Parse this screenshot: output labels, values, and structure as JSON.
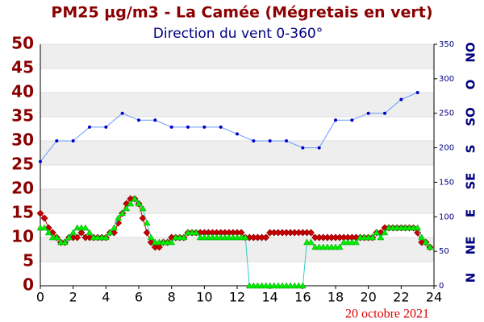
{
  "chart_data": {
    "type": "line",
    "title": "PM25 µg/m3 - La Camée (Mégretais en vert)",
    "subtitle": "Direction du vent 0-360°",
    "date": "20 octobre 2021",
    "xlim": [
      0,
      24
    ],
    "xticks": [
      0,
      2,
      4,
      6,
      8,
      10,
      12,
      14,
      16,
      18,
      20,
      22,
      24
    ],
    "ylim": [
      0,
      50
    ],
    "yticks": [
      0,
      5,
      10,
      15,
      20,
      25,
      30,
      35,
      40,
      45,
      50
    ],
    "y2lim": [
      0,
      350
    ],
    "y2ticks": [
      0,
      50,
      100,
      150,
      200,
      250,
      300,
      350
    ],
    "y2_labels": [
      "N",
      "NE",
      "E",
      "SE",
      "S",
      "SO",
      "O",
      "NO"
    ],
    "grid": true,
    "series": [
      {
        "color": "#cc0000",
        "marker": "diamond",
        "x": [
          0,
          0.25,
          0.5,
          0.75,
          1,
          1.25,
          1.5,
          1.75,
          2,
          2.25,
          2.5,
          2.75,
          3,
          3.25,
          3.5,
          3.75,
          4,
          4.25,
          4.5,
          4.75,
          5,
          5.25,
          5.5,
          5.75,
          6,
          6.25,
          6.5,
          6.75,
          7,
          7.25,
          7.5,
          7.75,
          8,
          8.25,
          8.5,
          8.75,
          9,
          9.25,
          9.5,
          9.75,
          10,
          10.25,
          10.5,
          10.75,
          11,
          11.25,
          11.5,
          11.75,
          12,
          12.25,
          12.5,
          12.75,
          13,
          13.25,
          13.5,
          13.75,
          14,
          14.25,
          14.5,
          14.75,
          15,
          15.25,
          15.5,
          15.75,
          16,
          16.25,
          16.5,
          16.75,
          17,
          17.25,
          17.5,
          17.75,
          18,
          18.25,
          18.5,
          18.75,
          19,
          19.25,
          19.5,
          19.75,
          20,
          20.25,
          20.5,
          20.75,
          21,
          21.25,
          21.5,
          21.75,
          22,
          22.25,
          22.5,
          22.75,
          23,
          23.25,
          23.5,
          23.75
        ],
        "values": [
          15,
          14,
          12,
          11,
          10,
          9,
          9,
          10,
          10,
          10,
          11,
          10,
          10,
          10,
          10,
          10,
          10,
          11,
          11,
          13,
          15,
          17,
          18,
          18,
          17,
          14,
          11,
          9,
          8,
          8,
          9,
          9,
          10,
          10,
          10,
          10,
          11,
          11,
          11,
          11,
          11,
          11,
          11,
          11,
          11,
          11,
          11,
          11,
          11,
          11,
          10,
          10,
          10,
          10,
          10,
          10,
          11,
          11,
          11,
          11,
          11,
          11,
          11,
          11,
          11,
          11,
          11,
          10,
          10,
          10,
          10,
          10,
          10,
          10,
          10,
          10,
          10,
          10,
          10,
          10,
          10,
          10,
          11,
          11,
          12,
          12,
          12,
          12,
          12,
          12,
          12,
          12,
          11,
          9,
          9,
          8
        ]
      },
      {
        "color": "#00ee00",
        "marker": "triangle",
        "x": [
          0,
          0.25,
          0.5,
          0.75,
          1,
          1.25,
          1.5,
          1.75,
          2,
          2.25,
          2.5,
          2.75,
          3,
          3.25,
          3.5,
          3.75,
          4,
          4.25,
          4.5,
          4.75,
          5,
          5.25,
          5.5,
          5.75,
          6,
          6.25,
          6.5,
          6.75,
          7,
          7.25,
          7.5,
          7.75,
          8,
          8.25,
          8.5,
          8.75,
          9,
          9.25,
          9.5,
          9.75,
          10,
          10.25,
          10.5,
          10.75,
          11,
          11.25,
          11.5,
          11.75,
          12,
          12.25,
          12.5,
          12.75,
          13,
          13.25,
          13.5,
          13.75,
          14,
          14.25,
          14.5,
          14.75,
          15,
          15.25,
          15.5,
          15.75,
          16,
          16.25,
          16.5,
          16.75,
          17,
          17.25,
          17.5,
          17.75,
          18,
          18.25,
          18.5,
          18.75,
          19,
          19.25,
          19.5,
          19.75,
          20,
          20.25,
          20.5,
          20.75,
          21,
          21.25,
          21.5,
          21.75,
          22,
          22.25,
          22.5,
          22.75,
          23,
          23.25,
          23.5,
          23.75
        ],
        "values": [
          12,
          12,
          11,
          10,
          10,
          9,
          9,
          10,
          11,
          12,
          12,
          12,
          11,
          10,
          10,
          10,
          10,
          11,
          12,
          14,
          15,
          16,
          17,
          18,
          17,
          16,
          13,
          10,
          9,
          9,
          9,
          9,
          9,
          10,
          10,
          10,
          11,
          11,
          11,
          10,
          10,
          10,
          10,
          10,
          10,
          10,
          10,
          10,
          10,
          10,
          10,
          0,
          0,
          0,
          0,
          0,
          0,
          0,
          0,
          0,
          0,
          0,
          0,
          0,
          0,
          9,
          9,
          8,
          8,
          8,
          8,
          8,
          8,
          8,
          9,
          9,
          9,
          9,
          10,
          10,
          10,
          10,
          11,
          10,
          11,
          12,
          12,
          12,
          12,
          12,
          12,
          12,
          12,
          10,
          9,
          8
        ]
      },
      {
        "color": "#0000cc",
        "marker": "circle",
        "axis": "y2",
        "x": [
          0,
          1,
          2,
          3,
          4,
          5,
          6,
          7,
          8,
          9,
          10,
          11,
          12,
          13,
          14,
          15,
          16,
          17,
          18,
          19,
          20,
          21,
          22,
          23
        ],
        "values": [
          180,
          210,
          210,
          230,
          230,
          250,
          240,
          240,
          230,
          230,
          230,
          230,
          220,
          210,
          210,
          210,
          200,
          200,
          240,
          240,
          250,
          250,
          270,
          280
        ]
      }
    ]
  }
}
